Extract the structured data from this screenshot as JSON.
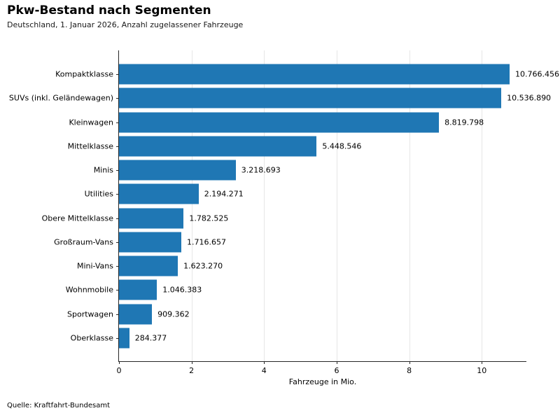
{
  "header": {
    "title": "Pkw-Bestand nach Segmenten",
    "subtitle": "Deutschland, 1. Januar 2026, Anzahl zugelassener Fahrzeuge"
  },
  "footer": {
    "source": "Quelle: Kraftfahrt-Bundesamt"
  },
  "chart_data": {
    "type": "bar",
    "orientation": "horizontal",
    "title": "Pkw-Bestand nach Segmenten",
    "subtitle": "Deutschland, 1. Januar 2026, Anzahl zugelassener Fahrzeuge",
    "xlabel": "Fahrzeuge in Mio.",
    "categories": [
      "Kompaktklasse",
      "SUVs (inkl. Geländewagen)",
      "Kleinwagen",
      "Mittelklasse",
      "Minis",
      "Utilities",
      "Obere Mittelklasse",
      "Großraum-Vans",
      "Mini-Vans",
      "Wohnmobile",
      "Sportwagen",
      "Oberklasse"
    ],
    "values": [
      10766456,
      10536890,
      8819798,
      5448546,
      3218693,
      2194271,
      1782525,
      1716657,
      1623270,
      1046383,
      909362,
      284377
    ],
    "value_labels": [
      "10.766.456",
      "10.536.890",
      "8.819.798",
      "5.448.546",
      "3.218.693",
      "2.194.271",
      "1.782.525",
      "1.716.657",
      "1.623.270",
      "1.046.383",
      "909.362",
      "284.377"
    ],
    "value_unit_divisor": 1000000,
    "xticks": [
      0,
      2,
      4,
      6,
      8,
      10
    ],
    "xlim": [
      0,
      11.23
    ],
    "grid": "vertical",
    "legend": "none",
    "bar_color": "#1f77b4",
    "gridline_color": "#e6e6e6",
    "axis_color": "#262626",
    "source": "Quelle: Kraftfahrt-Bundesamt"
  }
}
